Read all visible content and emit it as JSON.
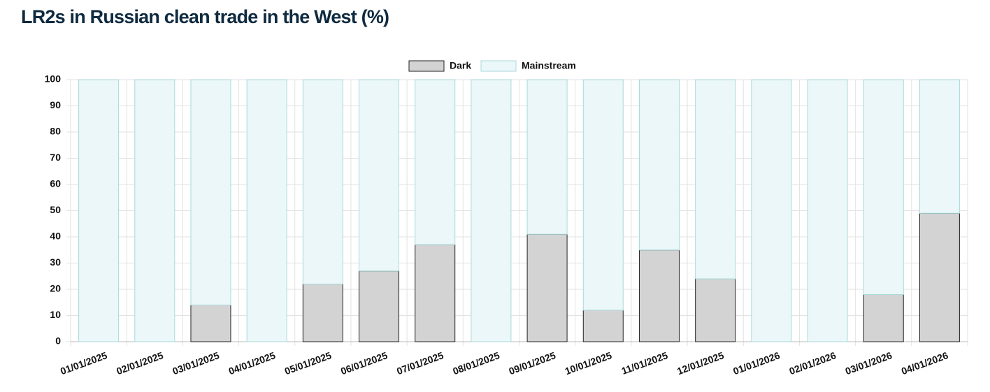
{
  "chart_data": {
    "type": "stacked_bar",
    "title": "LR2s in Russian clean trade in the West (%)",
    "categories": [
      "01/01/2025",
      "02/01/2025",
      "03/01/2025",
      "04/01/2025",
      "05/01/2025",
      "06/01/2025",
      "07/01/2025",
      "08/01/2025",
      "09/01/2025",
      "10/01/2025",
      "11/01/2025",
      "12/01/2025",
      "01/01/2026",
      "02/01/2026",
      "03/01/2026",
      "04/01/2026"
    ],
    "series": [
      {
        "name": "Dark",
        "color": "#d3d3d3",
        "values": [
          0,
          0,
          14,
          0,
          22,
          27,
          37,
          0,
          41,
          12,
          35,
          24,
          0,
          0,
          18,
          49
        ]
      },
      {
        "name": "Mainstream",
        "color": "#ebf7f8",
        "values": [
          100,
          100,
          86,
          100,
          78,
          73,
          63,
          100,
          59,
          88,
          65,
          76,
          100,
          100,
          82,
          51
        ]
      }
    ],
    "ylim": [
      0,
      100
    ],
    "yticks": [
      0,
      10,
      20,
      30,
      40,
      50,
      60,
      70,
      80,
      90,
      100
    ],
    "grid": true,
    "legend": "top"
  }
}
